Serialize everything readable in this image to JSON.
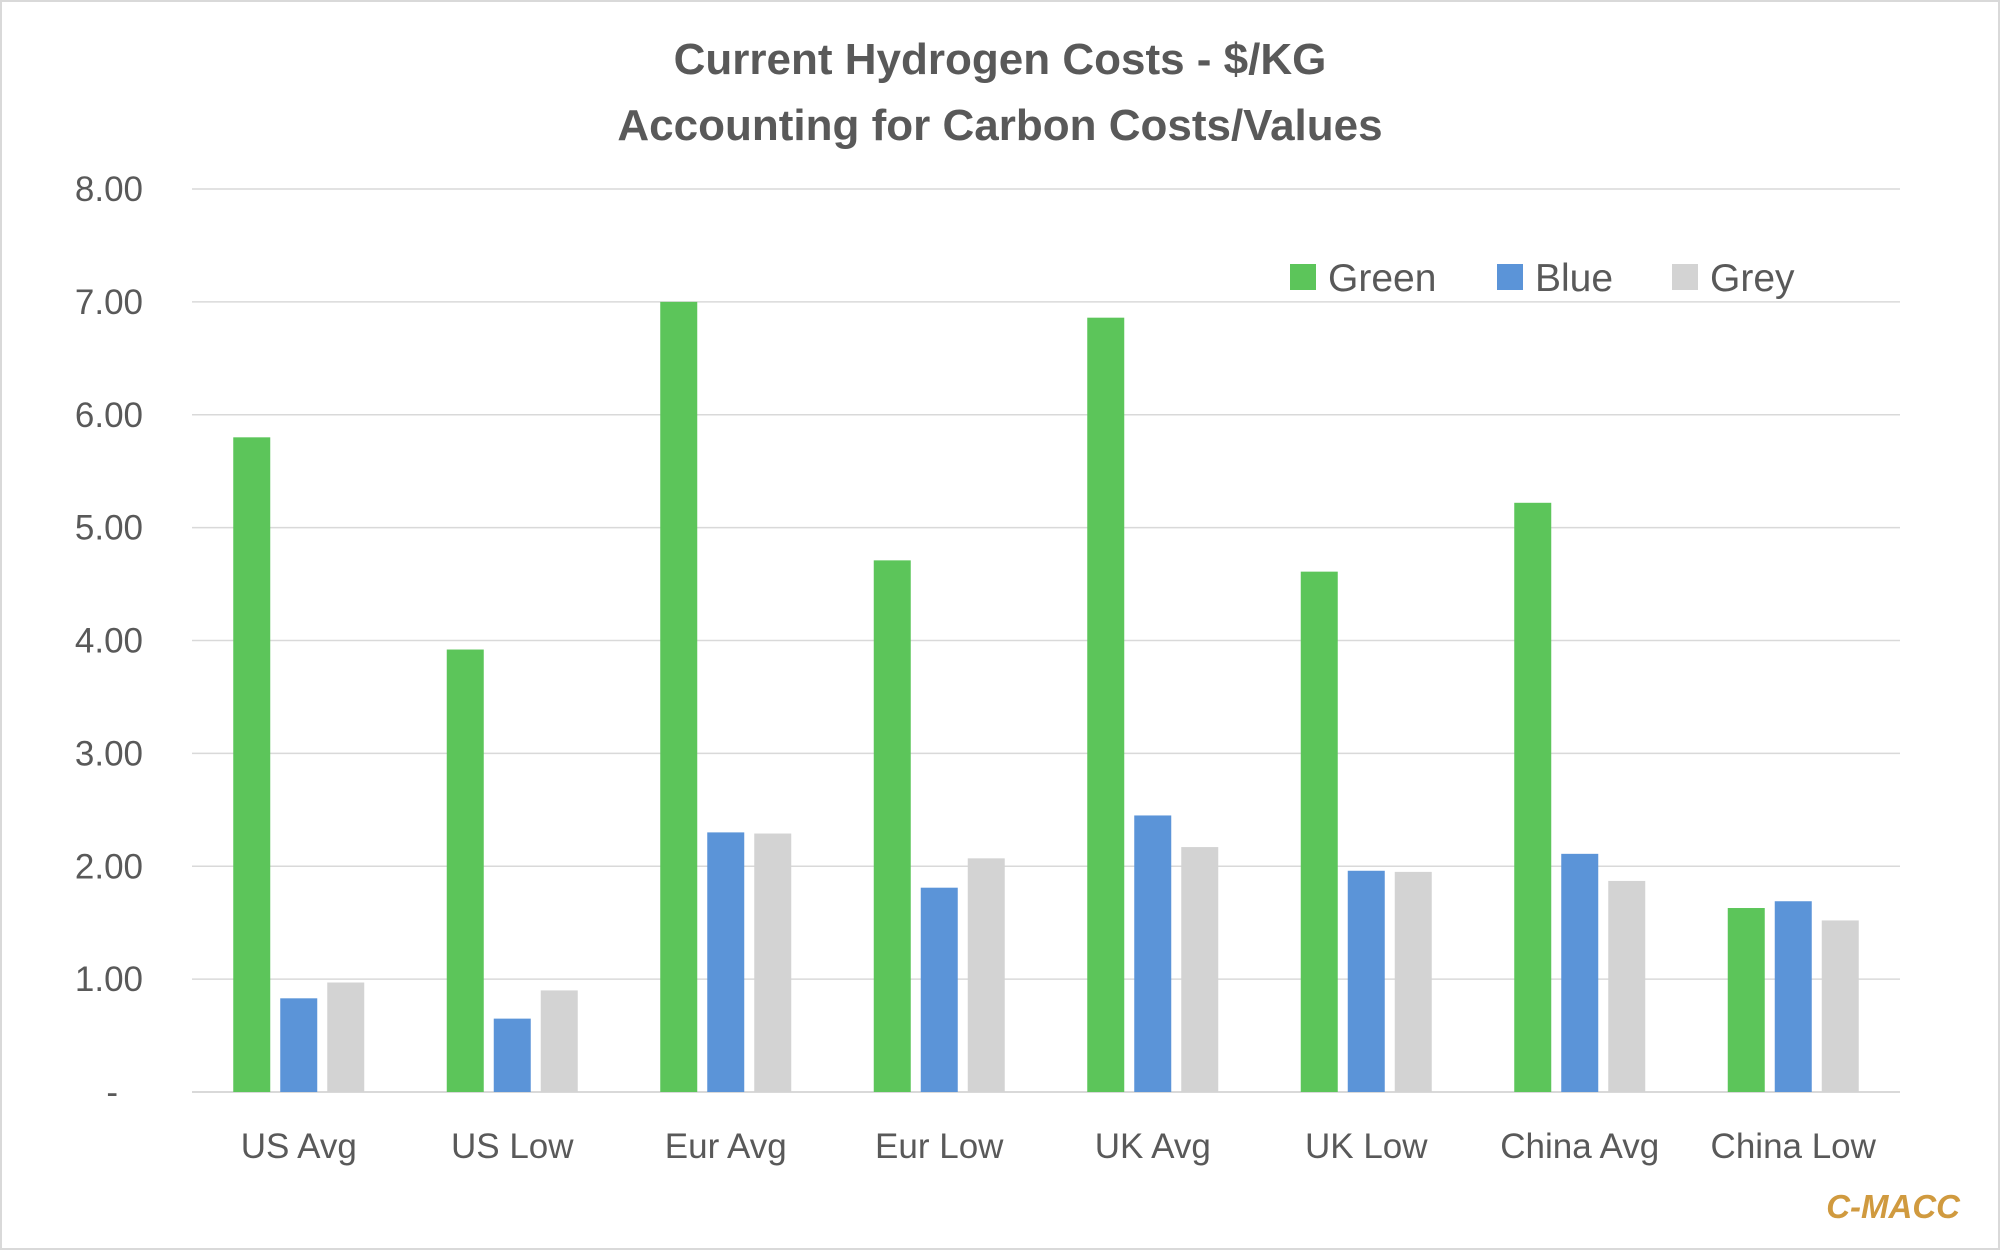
{
  "chart_data": {
    "type": "bar",
    "title": "Current Hydrogen Costs - $/KG",
    "subtitle": "Accounting for Carbon Costs/Values",
    "xlabel": "",
    "ylabel": "",
    "ylim": [
      0,
      8
    ],
    "y_ticks": [
      {
        "value": 0,
        "label": "-"
      },
      {
        "value": 1,
        "label": "1.00"
      },
      {
        "value": 2,
        "label": "2.00"
      },
      {
        "value": 3,
        "label": "3.00"
      },
      {
        "value": 4,
        "label": "4.00"
      },
      {
        "value": 5,
        "label": "5.00"
      },
      {
        "value": 6,
        "label": "6.00"
      },
      {
        "value": 7,
        "label": "7.00"
      },
      {
        "value": 8,
        "label": "8.00"
      }
    ],
    "grid": true,
    "legend_position": "top-right",
    "categories": [
      "US Avg",
      "US Low",
      "Eur Avg",
      "Eur Low",
      "UK Avg",
      "UK Low",
      "China Avg",
      "China Low"
    ],
    "series": [
      {
        "name": "Green",
        "color": "#5cc55a",
        "values": [
          5.8,
          3.92,
          7.0,
          4.71,
          6.86,
          4.61,
          5.22,
          1.63
        ]
      },
      {
        "name": "Blue",
        "color": "#5b94d8",
        "values": [
          0.83,
          0.65,
          2.3,
          1.81,
          2.45,
          1.96,
          2.11,
          1.69
        ]
      },
      {
        "name": "Grey",
        "color": "#d3d3d3",
        "values": [
          0.97,
          0.9,
          2.29,
          2.07,
          2.17,
          1.95,
          1.87,
          1.52
        ]
      }
    ]
  },
  "source": {
    "label": "C-MACC",
    "color": "#d09a3f"
  },
  "colors": {
    "text": "#595959",
    "grid": "#d9d9d9",
    "border": "#d9d9d9"
  }
}
